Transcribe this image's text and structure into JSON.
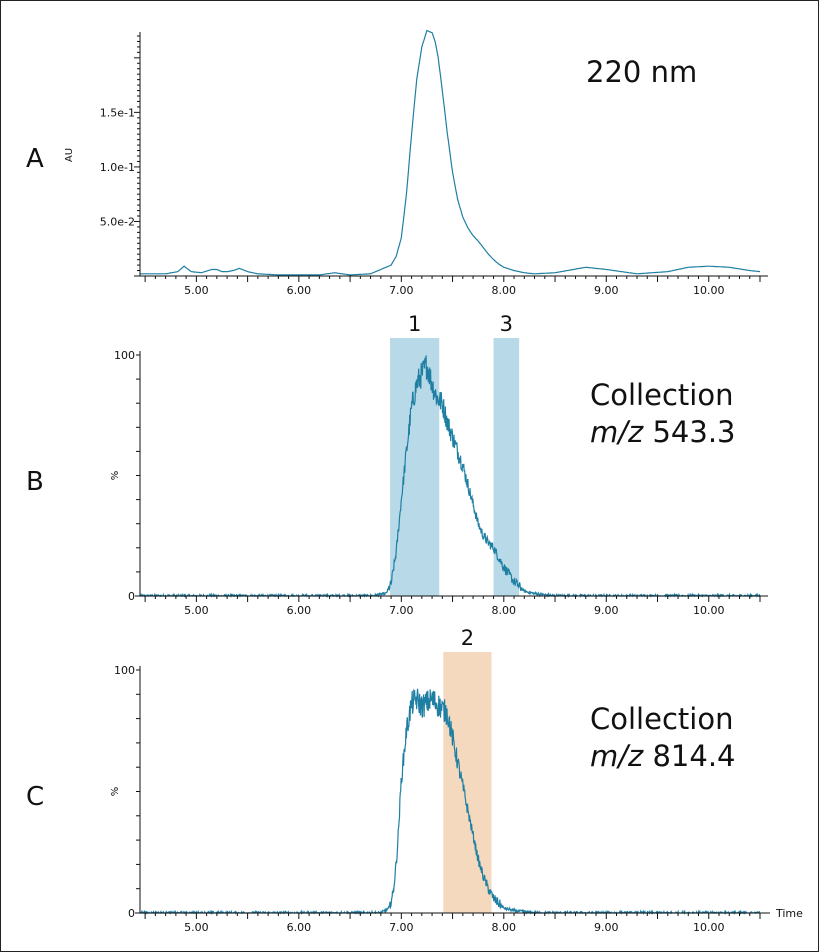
{
  "colors": {
    "trace": "#1f7fa3",
    "fraction_blue": "#b7d9e8",
    "fraction_orange": "#f4d9bf",
    "axis": "#111111"
  },
  "time_label": "Time",
  "chart_data": [
    {
      "type": "line",
      "panel": "A",
      "annotation": "220 nm",
      "ylabel": "AU",
      "xlim": [
        4.45,
        10.5
      ],
      "ylim": [
        0,
        0.22
      ],
      "yticks": [
        0.05,
        0.1,
        0.15
      ],
      "ytick_labels": [
        "5.0e-2",
        "1.0e-1",
        "1.5e-1"
      ],
      "xticks": [
        5.0,
        6.0,
        7.0,
        8.0,
        9.0,
        10.0
      ],
      "xtick_labels": [
        "5.00",
        "6.00",
        "7.00",
        "8.00",
        "9.00",
        "10.00"
      ],
      "fractions": [],
      "x": [
        4.45,
        4.7,
        4.82,
        4.88,
        4.95,
        5.05,
        5.15,
        5.2,
        5.25,
        5.3,
        5.36,
        5.42,
        5.5,
        5.6,
        5.8,
        6.0,
        6.2,
        6.35,
        6.5,
        6.7,
        6.8,
        6.9,
        6.95,
        7.0,
        7.05,
        7.1,
        7.15,
        7.2,
        7.25,
        7.3,
        7.33,
        7.36,
        7.4,
        7.45,
        7.5,
        7.55,
        7.6,
        7.65,
        7.7,
        7.75,
        7.8,
        7.85,
        7.9,
        7.95,
        8.0,
        8.1,
        8.2,
        8.3,
        8.5,
        8.8,
        9.0,
        9.3,
        9.6,
        9.8,
        10.0,
        10.2,
        10.4,
        10.5
      ],
      "y": [
        0.002,
        0.002,
        0.004,
        0.009,
        0.004,
        0.003,
        0.006,
        0.006,
        0.004,
        0.004,
        0.005,
        0.007,
        0.004,
        0.002,
        0.001,
        0.001,
        0.001,
        0.003,
        0.001,
        0.002,
        0.006,
        0.01,
        0.018,
        0.035,
        0.075,
        0.13,
        0.18,
        0.21,
        0.225,
        0.223,
        0.215,
        0.2,
        0.17,
        0.13,
        0.095,
        0.07,
        0.054,
        0.044,
        0.037,
        0.032,
        0.026,
        0.02,
        0.015,
        0.011,
        0.008,
        0.005,
        0.003,
        0.002,
        0.003,
        0.008,
        0.006,
        0.002,
        0.004,
        0.008,
        0.009,
        0.008,
        0.005,
        0.004
      ]
    },
    {
      "type": "line",
      "panel": "B",
      "annotation": "Collection",
      "annotation_mz": "m/z",
      "annotation_value": "543.3",
      "ylabel": "%",
      "xlim": [
        4.45,
        10.5
      ],
      "ylim": [
        0,
        100
      ],
      "yticks": [
        0,
        100
      ],
      "ytick_labels": [
        "0",
        "100"
      ],
      "xticks": [
        5.0,
        6.0,
        7.0,
        8.0,
        9.0,
        10.0
      ],
      "xtick_labels": [
        "5.00",
        "6.00",
        "7.00",
        "8.00",
        "9.00",
        "10.00"
      ],
      "fractions": [
        {
          "label": "1",
          "start": 6.89,
          "end": 7.37
        },
        {
          "label": "3",
          "start": 7.9,
          "end": 8.15
        }
      ],
      "x": [
        4.45,
        6.7,
        6.85,
        6.9,
        6.95,
        7.0,
        7.05,
        7.1,
        7.15,
        7.2,
        7.25,
        7.3,
        7.35,
        7.4,
        7.45,
        7.5,
        7.55,
        7.6,
        7.65,
        7.7,
        7.75,
        7.8,
        7.85,
        7.9,
        7.95,
        8.0,
        8.05,
        8.1,
        8.15,
        8.2,
        8.3,
        8.5,
        10.5
      ],
      "y": [
        0,
        0,
        1,
        5,
        18,
        40,
        60,
        78,
        88,
        92,
        96,
        88,
        82,
        80,
        72,
        66,
        60,
        54,
        46,
        38,
        30,
        25,
        22,
        20,
        16,
        12,
        9,
        6,
        4,
        2,
        1,
        0,
        0
      ]
    },
    {
      "type": "line",
      "panel": "C",
      "annotation": "Collection",
      "annotation_mz": "m/z",
      "annotation_value": "814.4",
      "ylabel": "%",
      "xlim": [
        4.45,
        10.5
      ],
      "ylim": [
        0,
        100
      ],
      "yticks": [
        0,
        100
      ],
      "ytick_labels": [
        "0",
        "100"
      ],
      "xticks": [
        5.0,
        6.0,
        7.0,
        8.0,
        9.0,
        10.0
      ],
      "xtick_labels": [
        "5.00",
        "6.00",
        "7.00",
        "8.00",
        "9.00",
        "10.00"
      ],
      "fractions": [
        {
          "label": "2",
          "start": 7.41,
          "end": 7.88
        }
      ],
      "x": [
        4.45,
        6.8,
        6.88,
        6.92,
        6.96,
        7.0,
        7.05,
        7.1,
        7.15,
        7.2,
        7.3,
        7.4,
        7.45,
        7.5,
        7.55,
        7.6,
        7.65,
        7.7,
        7.75,
        7.8,
        7.85,
        7.9,
        7.95,
        8.0,
        8.1,
        8.3,
        10.5
      ],
      "y": [
        0,
        0,
        2,
        8,
        25,
        55,
        75,
        86,
        88,
        85,
        88,
        84,
        82,
        72,
        62,
        52,
        42,
        32,
        22,
        15,
        10,
        6,
        4,
        2,
        1,
        0,
        0
      ]
    }
  ]
}
